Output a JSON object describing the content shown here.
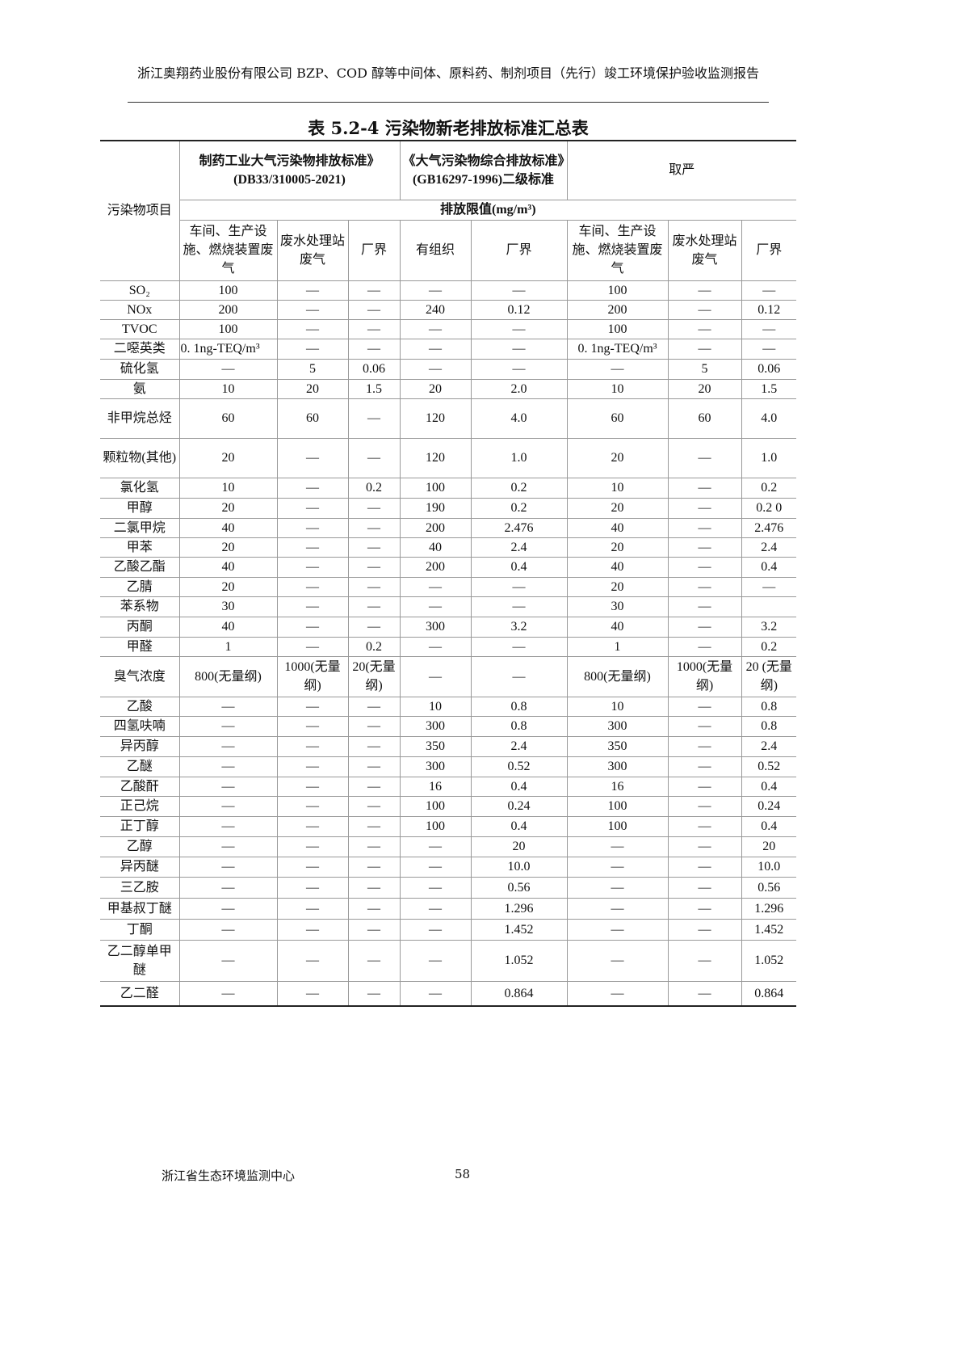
{
  "page_header": "浙江奥翔药业股份有限公司 BZP、COD 醇等中间体、原料药、制剂项目（先行）竣工环境保护验收监测报告",
  "table_title": "表 5.2-4 污染物新老排放标准汇总表",
  "table": {
    "col_pollutant": "污染物项目",
    "group1": "制药工业大气污染物排放标准》(DB33/310005-2021)",
    "group2": "《大气污染物综合排放标准》(GB16297-1996)二级标准",
    "group3": "取严",
    "unit_row": "排放限值(mg/m³)",
    "sub_headers": [
      "车间、生产设施、燃烧装置废气",
      "废水处理站废气",
      "厂界",
      "有组织",
      "厂界",
      "车间、生产设施、燃烧装置废气",
      "废水处理站废气",
      "厂界"
    ],
    "rows": [
      [
        "SO₂",
        "100",
        "—",
        "—",
        "—",
        "—",
        "100",
        "—",
        "—"
      ],
      [
        "NOx",
        "200",
        "—",
        "—",
        "240",
        "0.12",
        "200",
        "—",
        "0.12"
      ],
      [
        "TVOC",
        "100",
        "—",
        "—",
        "—",
        "—",
        "100",
        "—",
        "—"
      ],
      [
        "二噁英类",
        "0. 1ng-TEQ/m³",
        "—",
        "—",
        "—",
        "—",
        "0. 1ng-TEQ/m³",
        "—",
        "—"
      ],
      [
        "硫化氢",
        "—",
        "5",
        "0.06",
        "—",
        "—",
        "—",
        "5",
        "0.06"
      ],
      [
        "氨",
        "10",
        "20",
        "1.5",
        "20",
        "2.0",
        "10",
        "20",
        "1.5"
      ],
      [
        "非甲烷总烃",
        "60",
        "60",
        "—",
        "120",
        "4.0",
        "60",
        "60",
        "4.0"
      ],
      [
        "颗粒物(其他)",
        "20",
        "—",
        "—",
        "120",
        "1.0",
        "20",
        "—",
        "1.0"
      ],
      [
        "氯化氢",
        "10",
        "—",
        "0.2",
        "100",
        "0.2",
        "10",
        "—",
        "0.2"
      ],
      [
        "甲醇",
        "20",
        "—",
        "—",
        "190",
        "0.2",
        "20",
        "—",
        "0.2 0"
      ],
      [
        "二氯甲烷",
        "40",
        "—",
        "—",
        "200",
        "2.476",
        "40",
        "—",
        "2.476"
      ],
      [
        "甲苯",
        "20",
        "—",
        "—",
        "40",
        "2.4",
        "20",
        "—",
        "2.4"
      ],
      [
        "乙酸乙酯",
        "40",
        "—",
        "—",
        "200",
        "0.4",
        "40",
        "—",
        "0.4"
      ],
      [
        "乙腈",
        "20",
        "—",
        "—",
        "—",
        "—",
        "20",
        "—",
        "—"
      ],
      [
        "苯系物",
        "30",
        "—",
        "—",
        "—",
        "—",
        "30",
        "—",
        ""
      ],
      [
        "丙酮",
        "40",
        "—",
        "—",
        "300",
        "3.2",
        "40",
        "—",
        "3.2"
      ],
      [
        "甲醛",
        "1",
        "—",
        "0.2",
        "—",
        "—",
        "1",
        "—",
        "0.2"
      ],
      [
        "臭气浓度",
        "800(无量纲)",
        "1000(无量纲)",
        "20(无量纲)",
        "—",
        "—",
        "800(无量纲)",
        "1000(无量纲)",
        "20 (无量纲)"
      ],
      [
        "乙酸",
        "—",
        "—",
        "—",
        "10",
        "0.8",
        "10",
        "—",
        "0.8"
      ],
      [
        "四氢呋喃",
        "—",
        "—",
        "—",
        "300",
        "0.8",
        "300",
        "—",
        "0.8"
      ],
      [
        "异丙醇",
        "—",
        "—",
        "—",
        "350",
        "2.4",
        "350",
        "—",
        "2.4"
      ],
      [
        "乙醚",
        "—",
        "—",
        "—",
        "300",
        "0.52",
        "300",
        "—",
        "0.52"
      ],
      [
        "乙酸酐",
        "—",
        "—",
        "—",
        "16",
        "0.4",
        "16",
        "—",
        "0.4"
      ],
      [
        "正己烷",
        "—",
        "—",
        "—",
        "100",
        "0.24",
        "100",
        "—",
        "0.24"
      ],
      [
        "正丁醇",
        "—",
        "—",
        "—",
        "100",
        "0.4",
        "100",
        "—",
        "0.4"
      ],
      [
        "乙醇",
        "—",
        "—",
        "—",
        "—",
        "20",
        "—",
        "—",
        "20"
      ],
      [
        "异丙醚",
        "—",
        "—",
        "—",
        "—",
        "10.0",
        "—",
        "—",
        "10.0"
      ],
      [
        "三乙胺",
        "—",
        "—",
        "—",
        "—",
        "0.56",
        "—",
        "—",
        "0.56"
      ],
      [
        "甲基叔丁醚",
        "—",
        "—",
        "—",
        "—",
        "1.296",
        "—",
        "—",
        "1.296"
      ],
      [
        "丁酮",
        "—",
        "—",
        "—",
        "—",
        "1.452",
        "—",
        "—",
        "1.452"
      ],
      [
        "乙二醇单甲醚",
        "—",
        "—",
        "—",
        "—",
        "1.052",
        "—",
        "—",
        "1.052"
      ],
      [
        "乙二醛",
        "—",
        "—",
        "—",
        "—",
        "0.864",
        "—",
        "—",
        "0.864"
      ]
    ]
  },
  "footer": {
    "org": "浙江省生态环境监测中心",
    "page": "58"
  }
}
